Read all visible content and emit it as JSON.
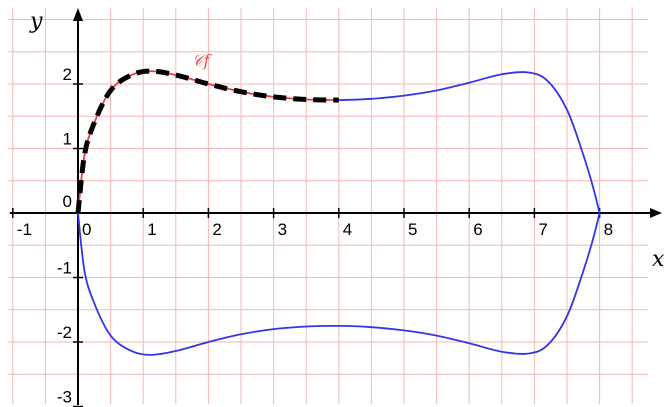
{
  "chart_data": {
    "type": "line",
    "title": "",
    "xlabel": "x",
    "ylabel": "y",
    "xlim": [
      -1,
      8
    ],
    "ylim": [
      -3,
      2.7
    ],
    "grid": true,
    "x_ticks": [
      "-1",
      "0",
      "1",
      "2",
      "3",
      "4",
      "5",
      "6",
      "7",
      "8"
    ],
    "y_ticks": [
      "2",
      "1",
      "0",
      "-1",
      "-2",
      "-3"
    ],
    "curve_label": "𝒞f",
    "colors": {
      "upper_arc": "#f03c3c",
      "closed_curve": "#3434e8",
      "dashed": "#000000",
      "grid": "#f4b7b7",
      "axes": "#000000"
    },
    "series": [
      {
        "name": "𝒞f",
        "style": "solid",
        "color": "#f03c3c",
        "x": [
          0,
          0.1,
          0.25,
          0.5,
          0.8,
          1.1,
          1.5,
          2.0,
          2.5,
          3.0,
          3.5,
          4.0
        ],
        "y": [
          0,
          0.9,
          1.4,
          1.9,
          2.13,
          2.2,
          2.14,
          2.0,
          1.88,
          1.8,
          1.76,
          1.75
        ]
      },
      {
        "style": "dashed",
        "color": "#000000",
        "x": [
          0,
          0.1,
          0.25,
          0.5,
          0.8,
          1.1,
          1.5,
          2.0,
          2.5,
          3.0,
          3.5,
          4.0
        ],
        "y": [
          0,
          0.9,
          1.4,
          1.9,
          2.13,
          2.2,
          2.14,
          2.0,
          1.88,
          1.8,
          1.76,
          1.75
        ]
      },
      {
        "style": "solid",
        "color": "#3434e8",
        "x": [
          4.0,
          4.5,
          5.0,
          5.5,
          6.0,
          6.5,
          6.9,
          7.2,
          7.5,
          7.75,
          7.9,
          8.0
        ],
        "y": [
          1.75,
          1.77,
          1.82,
          1.9,
          2.02,
          2.15,
          2.18,
          2.05,
          1.6,
          0.9,
          0.4,
          0
        ]
      },
      {
        "style": "solid",
        "color": "#3434e8",
        "x": [
          8.0,
          7.9,
          7.75,
          7.5,
          7.2,
          6.9,
          6.5,
          6.0,
          5.5,
          5.0,
          4.5,
          4.0,
          3.5,
          3.0,
          2.5,
          2.0,
          1.5,
          1.1,
          0.8,
          0.5,
          0.25,
          0.1,
          0
        ],
        "y": [
          0,
          -0.4,
          -0.9,
          -1.6,
          -2.05,
          -2.18,
          -2.15,
          -2.02,
          -1.9,
          -1.82,
          -1.77,
          -1.75,
          -1.76,
          -1.8,
          -1.88,
          -2.0,
          -2.14,
          -2.2,
          -2.13,
          -1.9,
          -1.4,
          -0.9,
          0
        ]
      }
    ]
  }
}
